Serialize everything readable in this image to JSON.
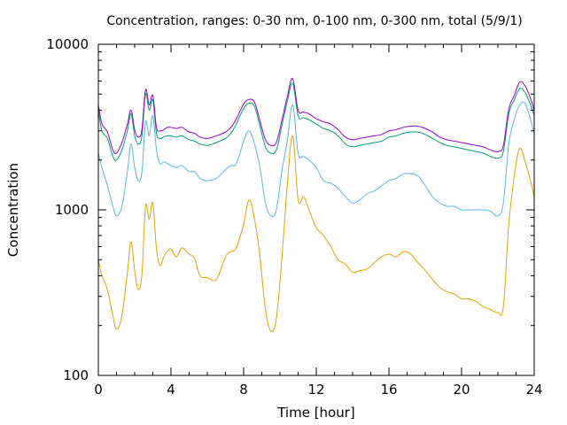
{
  "chart_data": {
    "type": "line",
    "title": "Concentration, ranges: 0-30 nm, 0-100 nm, 0-300 nm, total (5/9/1)",
    "xlabel": "Time [hour]",
    "ylabel": "Concentration",
    "xlim": [
      0,
      24
    ],
    "ylim": [
      100,
      10000
    ],
    "yscale": "log",
    "grid": false,
    "legend": "none",
    "x_ticks": [
      0,
      4,
      8,
      12,
      16,
      20,
      24
    ],
    "x_tick_labels": [
      "0",
      "4",
      "8",
      "12",
      "16",
      "20",
      "24"
    ],
    "y_ticks": [
      100,
      1000,
      10000
    ],
    "y_tick_labels": [
      "100",
      "1000",
      "10000"
    ],
    "series": [
      {
        "color": "#e69f00",
        "x": [
          0,
          0.2,
          0.5,
          0.8,
          1.0,
          1.3,
          1.6,
          1.8,
          2.0,
          2.2,
          2.4,
          2.6,
          2.8,
          3.0,
          3.2,
          3.4,
          3.6,
          3.8,
          4.0,
          4.3,
          4.6,
          5.0,
          5.3,
          5.6,
          6.0,
          6.5,
          7.0,
          7.3,
          7.6,
          8.0,
          8.3,
          8.6,
          8.9,
          9.2,
          9.5,
          9.8,
          10.1,
          10.4,
          10.7,
          11.0,
          11.3,
          11.6,
          12.0,
          12.4,
          12.8,
          13.2,
          13.6,
          14.0,
          14.4,
          14.8,
          15.2,
          15.6,
          16.0,
          16.4,
          16.8,
          17.2,
          17.6,
          18.0,
          18.4,
          18.8,
          19.2,
          19.6,
          20.0,
          20.4,
          20.8,
          21.2,
          21.6,
          22.0,
          22.3,
          22.6,
          22.9,
          23.2,
          23.5,
          23.8,
          24.0
        ],
        "values": [
          500,
          400,
          330,
          230,
          190,
          230,
          420,
          640,
          430,
          330,
          410,
          1050,
          880,
          1100,
          580,
          460,
          520,
          560,
          580,
          520,
          590,
          540,
          510,
          400,
          390,
          380,
          520,
          560,
          590,
          820,
          1150,
          880,
          520,
          250,
          185,
          220,
          500,
          1400,
          2800,
          1150,
          1200,
          1000,
          780,
          700,
          600,
          500,
          470,
          420,
          430,
          440,
          480,
          520,
          540,
          520,
          560,
          540,
          480,
          430,
          380,
          340,
          320,
          310,
          290,
          290,
          280,
          260,
          250,
          240,
          260,
          820,
          1600,
          2350,
          1950,
          1500,
          1200
        ]
      },
      {
        "color": "#56b4e9",
        "x": [
          0,
          0.2,
          0.5,
          0.8,
          1.0,
          1.3,
          1.6,
          1.8,
          2.0,
          2.2,
          2.4,
          2.6,
          2.8,
          3.0,
          3.2,
          3.4,
          3.6,
          3.8,
          4.0,
          4.3,
          4.6,
          5.0,
          5.3,
          5.6,
          6.0,
          6.5,
          7.0,
          7.3,
          7.6,
          8.0,
          8.3,
          8.6,
          8.9,
          9.2,
          9.5,
          9.8,
          10.1,
          10.4,
          10.7,
          11.0,
          11.3,
          11.6,
          12.0,
          12.4,
          12.8,
          13.2,
          13.6,
          14.0,
          14.4,
          14.8,
          15.2,
          15.6,
          16.0,
          16.4,
          16.8,
          17.2,
          17.6,
          18.0,
          18.4,
          18.8,
          19.2,
          19.6,
          20.0,
          20.4,
          20.8,
          21.2,
          21.6,
          22.0,
          22.3,
          22.6,
          22.9,
          23.2,
          23.5,
          23.8,
          24.0
        ],
        "values": [
          2200,
          1800,
          1400,
          1050,
          920,
          1050,
          1700,
          2500,
          1800,
          1500,
          1700,
          3400,
          2800,
          3700,
          2300,
          1900,
          1950,
          1900,
          1850,
          1800,
          1850,
          1700,
          1700,
          1550,
          1500,
          1550,
          1750,
          1850,
          1900,
          2600,
          3000,
          2500,
          1800,
          1100,
          920,
          1000,
          1700,
          2600,
          4300,
          2200,
          2100,
          2000,
          1800,
          1500,
          1450,
          1350,
          1200,
          1100,
          1150,
          1250,
          1300,
          1400,
          1500,
          1550,
          1650,
          1650,
          1600,
          1400,
          1200,
          1100,
          1050,
          1050,
          1000,
          1000,
          1000,
          1000,
          980,
          920,
          1100,
          2500,
          3500,
          4300,
          4400,
          3500,
          2900
        ]
      },
      {
        "color": "#009e73",
        "x": [
          0,
          0.2,
          0.5,
          0.8,
          1.0,
          1.3,
          1.6,
          1.8,
          2.0,
          2.2,
          2.4,
          2.6,
          2.8,
          3.0,
          3.2,
          3.4,
          3.6,
          3.8,
          4.0,
          4.3,
          4.6,
          5.0,
          5.3,
          5.6,
          6.0,
          6.5,
          7.0,
          7.3,
          7.6,
          8.0,
          8.3,
          8.6,
          8.9,
          9.2,
          9.5,
          9.8,
          10.1,
          10.4,
          10.7,
          11.0,
          11.3,
          11.6,
          12.0,
          12.4,
          12.8,
          13.2,
          13.6,
          14.0,
          14.4,
          14.8,
          15.2,
          15.6,
          16.0,
          16.4,
          16.8,
          17.2,
          17.6,
          18.0,
          18.4,
          18.8,
          19.2,
          19.6,
          20.0,
          20.4,
          20.8,
          21.2,
          21.6,
          22.0,
          22.3,
          22.6,
          22.9,
          23.2,
          23.5,
          23.8,
          24.0
        ],
        "values": [
          4000,
          3000,
          2700,
          2100,
          2000,
          2300,
          3000,
          3800,
          2800,
          2500,
          2800,
          5000,
          4000,
          4600,
          2900,
          2700,
          2750,
          2800,
          2800,
          2750,
          2800,
          2650,
          2600,
          2500,
          2450,
          2550,
          2700,
          2900,
          3300,
          4100,
          4400,
          4200,
          3200,
          2400,
          2200,
          2300,
          3200,
          4500,
          5800,
          3700,
          3600,
          3500,
          3300,
          3100,
          3000,
          2800,
          2500,
          2400,
          2450,
          2500,
          2550,
          2600,
          2750,
          2800,
          2900,
          2950,
          2950,
          2850,
          2700,
          2550,
          2450,
          2400,
          2350,
          2300,
          2250,
          2200,
          2100,
          2050,
          2250,
          3800,
          4600,
          5400,
          5100,
          4300,
          3700
        ]
      },
      {
        "color": "#9400d3",
        "x": [
          0,
          0.2,
          0.5,
          0.8,
          1.0,
          1.3,
          1.6,
          1.8,
          2.0,
          2.2,
          2.4,
          2.6,
          2.8,
          3.0,
          3.2,
          3.4,
          3.6,
          3.8,
          4.0,
          4.3,
          4.6,
          5.0,
          5.3,
          5.6,
          6.0,
          6.5,
          7.0,
          7.3,
          7.6,
          8.0,
          8.3,
          8.6,
          8.9,
          9.2,
          9.5,
          9.8,
          10.1,
          10.4,
          10.7,
          11.0,
          11.3,
          11.6,
          12.0,
          12.4,
          12.8,
          13.2,
          13.6,
          14.0,
          14.4,
          14.8,
          15.2,
          15.6,
          16.0,
          16.4,
          16.8,
          17.2,
          17.6,
          18.0,
          18.4,
          18.8,
          19.2,
          19.6,
          20.0,
          20.4,
          20.8,
          21.2,
          21.6,
          22.0,
          22.3,
          22.6,
          22.9,
          23.2,
          23.5,
          23.8,
          24.0
        ],
        "values": [
          4300,
          3300,
          2950,
          2300,
          2200,
          2550,
          3300,
          4000,
          3050,
          2750,
          3050,
          5300,
          4300,
          4900,
          3150,
          3000,
          3050,
          3150,
          3150,
          3100,
          3150,
          2950,
          2900,
          2750,
          2700,
          2800,
          2950,
          3150,
          3550,
          4350,
          4650,
          4450,
          3450,
          2650,
          2450,
          2550,
          3450,
          4800,
          6200,
          4000,
          3900,
          3800,
          3550,
          3400,
          3300,
          3050,
          2750,
          2650,
          2700,
          2750,
          2800,
          2850,
          3000,
          3050,
          3150,
          3200,
          3200,
          3100,
          2950,
          2750,
          2650,
          2600,
          2550,
          2500,
          2450,
          2400,
          2300,
          2250,
          2450,
          4050,
          4900,
          5900,
          5600,
          4700,
          4000
        ]
      }
    ]
  }
}
